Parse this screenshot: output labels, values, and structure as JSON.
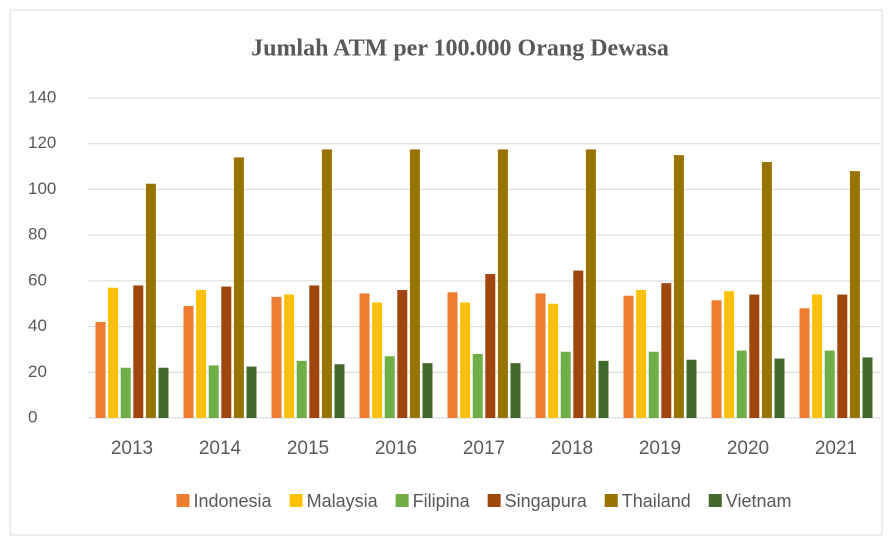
{
  "chart_data": {
    "type": "bar",
    "title": "Jumlah ATM per 100.000 Orang Dewasa",
    "categories": [
      "2013",
      "2014",
      "2015",
      "2016",
      "2017",
      "2018",
      "2019",
      "2020",
      "2021"
    ],
    "series": [
      {
        "name": "Indonesia",
        "color": "#ed7d31",
        "values": [
          42,
          49,
          53,
          54.5,
          55,
          54.5,
          53.5,
          51.5,
          48
        ]
      },
      {
        "name": "Malaysia",
        "color": "#ffc000",
        "values": [
          57,
          56,
          54,
          50.5,
          50.5,
          50,
          56,
          55.5,
          54
        ]
      },
      {
        "name": "Filipina",
        "color": "#70ad47",
        "values": [
          22,
          23,
          25,
          27,
          28,
          29,
          29,
          29.5,
          29.5
        ]
      },
      {
        "name": "Singapura",
        "color": "#9e480e",
        "values": [
          58,
          57.5,
          58,
          56,
          63,
          64.5,
          59,
          54,
          54
        ]
      },
      {
        "name": "Thailand",
        "color": "#997300",
        "values": [
          102.5,
          114,
          117.5,
          117.5,
          117.5,
          117.5,
          115,
          112,
          108
        ]
      },
      {
        "name": "Vietnam",
        "color": "#43682b",
        "values": [
          22,
          22.5,
          23.5,
          24,
          24,
          25,
          25.5,
          26,
          26.5
        ]
      }
    ],
    "ylim": [
      0,
      140
    ],
    "yticks": [
      0,
      20,
      40,
      60,
      80,
      100,
      120,
      140
    ],
    "grid": true,
    "legend": "bottom"
  }
}
